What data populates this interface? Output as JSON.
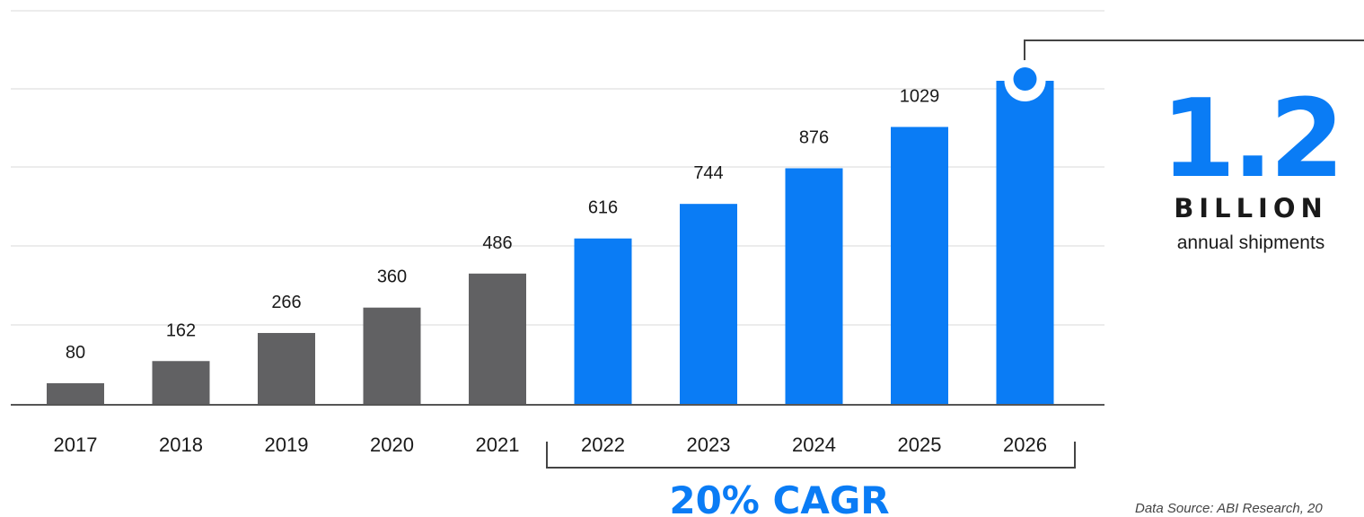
{
  "colors": {
    "historical": "#616163",
    "forecast": "#0a7cf5",
    "grid": "#ececec",
    "axis": "#555555",
    "text": "#1a1a1a"
  },
  "chart_data": {
    "type": "bar",
    "categories": [
      "2017",
      "2018",
      "2019",
      "2020",
      "2021",
      "2022",
      "2023",
      "2024",
      "2025",
      "2026"
    ],
    "values": [
      80,
      162,
      266,
      360,
      486,
      616,
      744,
      876,
      1029,
      1200
    ],
    "value_labels": [
      "80",
      "162",
      "266",
      "360",
      "486",
      "616",
      "744",
      "876",
      "1029",
      ""
    ],
    "forecast_from": "2022",
    "ylim": [
      0,
      1200
    ],
    "grid": true,
    "bracket_label": "20% CAGR"
  },
  "callout": {
    "value": "1.2",
    "unit": "BILLION",
    "caption": "annual shipments",
    "marker_icon": "circle-marker-icon"
  },
  "source_note": "Data Source: ABI Research, 20"
}
